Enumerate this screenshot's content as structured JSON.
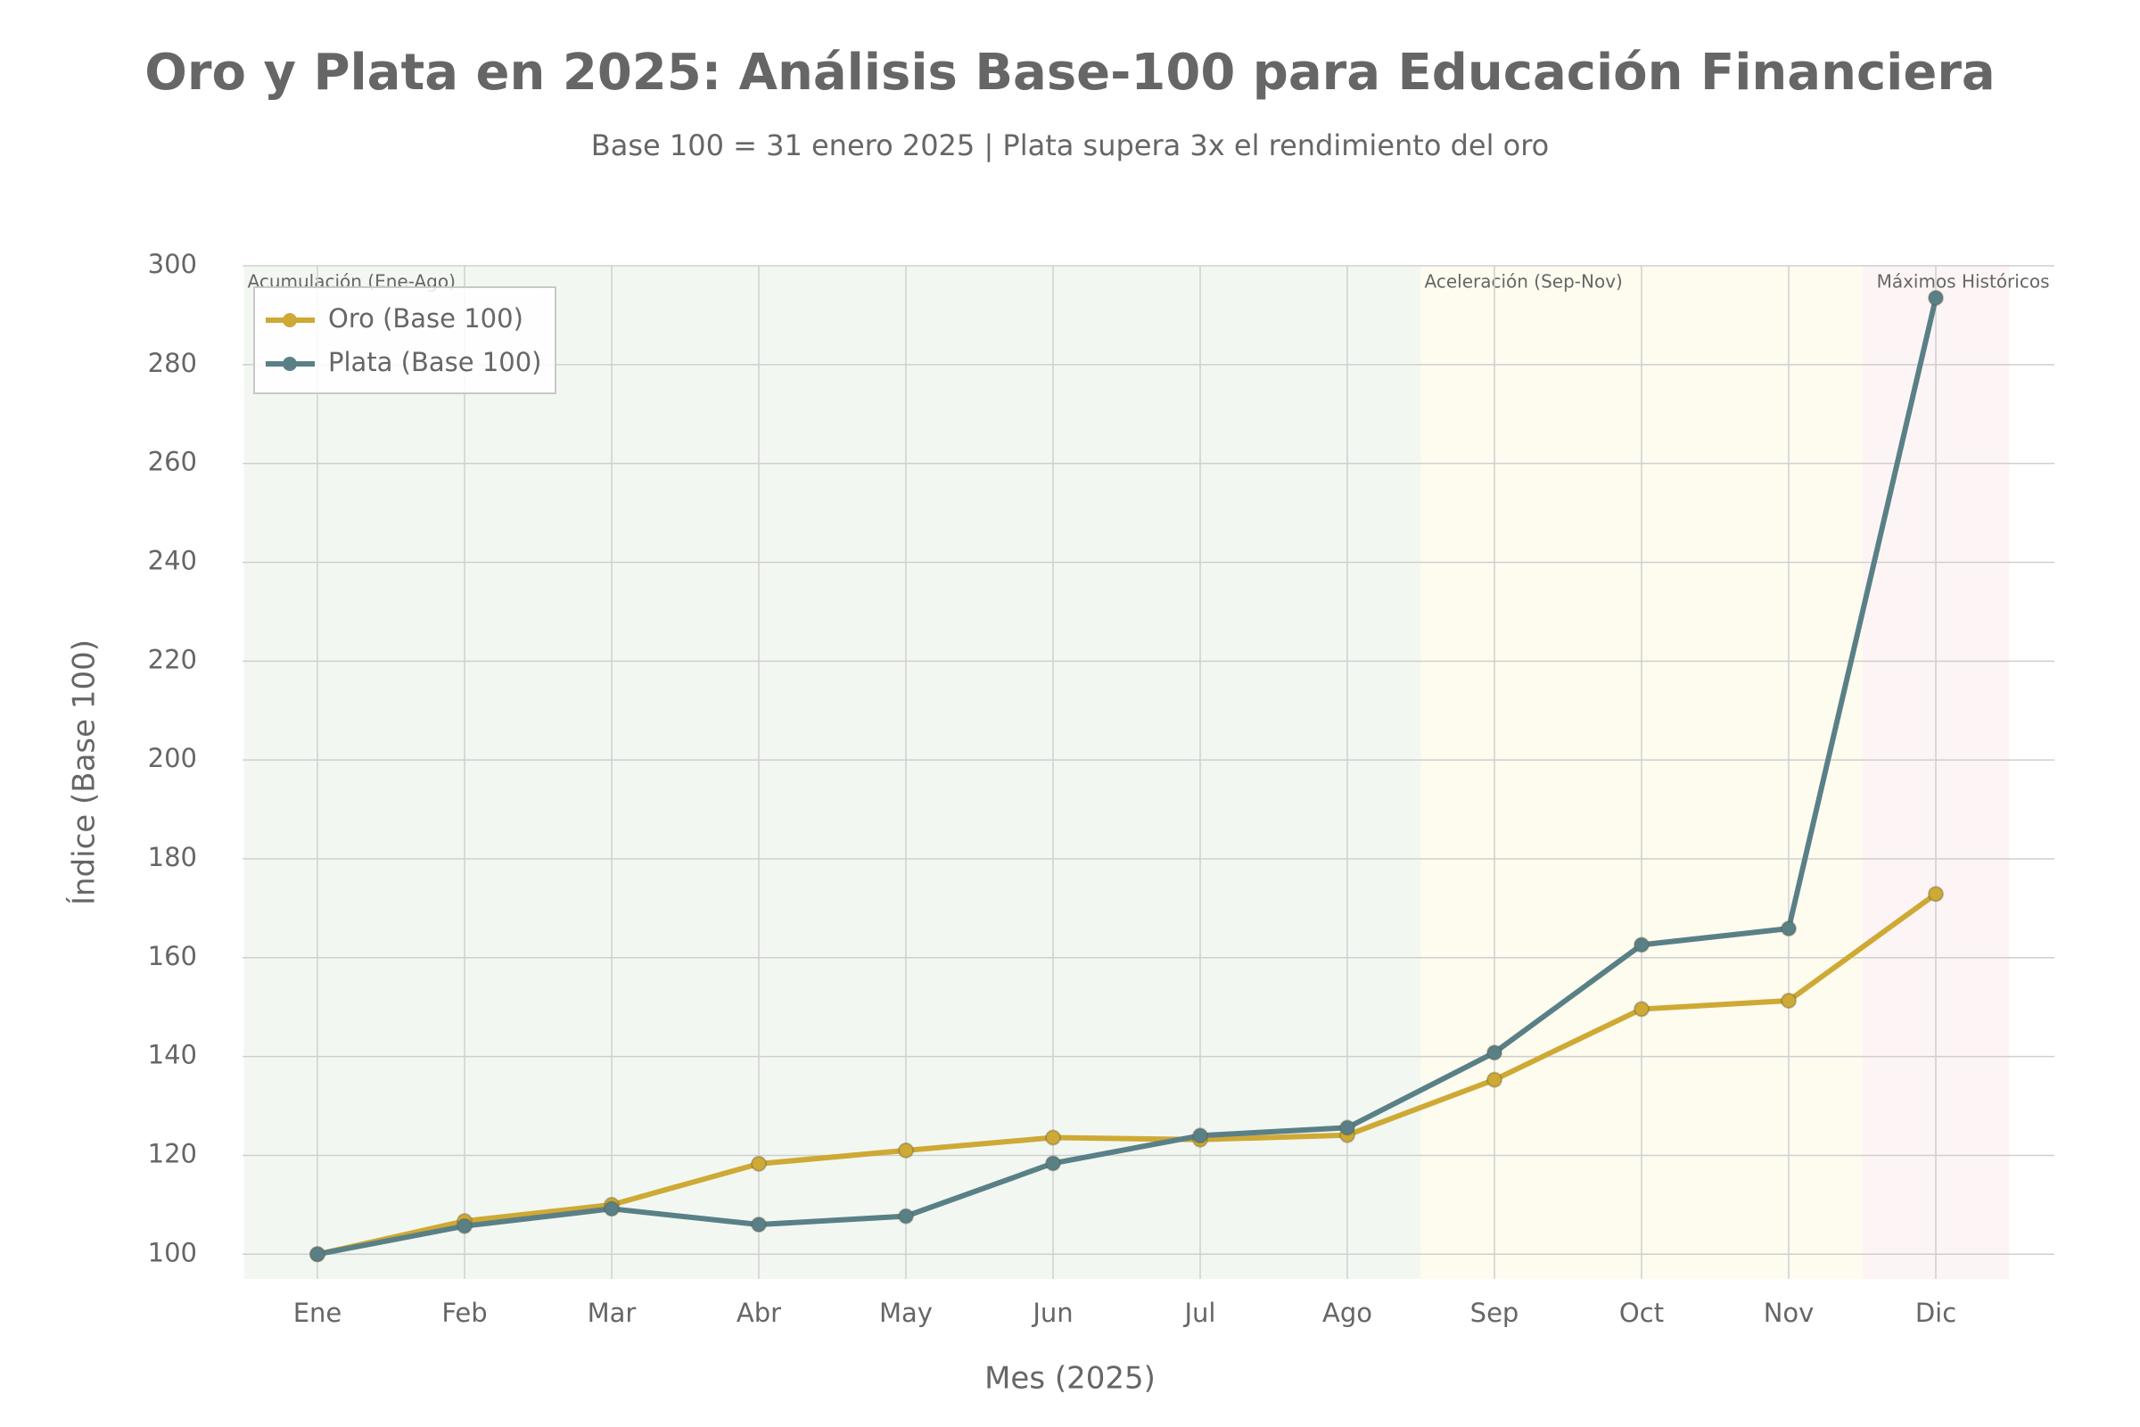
{
  "chart_data": {
    "type": "line",
    "title": "Oro y Plata en 2025: Análisis Base-100 para Educación Financiera",
    "subtitle": "Base 100 = 31 enero 2025 | Plata supera 3x el rendimiento del oro",
    "x_label": "Mes (2025)",
    "y_label": "Índice (Base 100)",
    "categories": [
      "Ene",
      "Feb",
      "Mar",
      "Abr",
      "May",
      "Jun",
      "Jul",
      "Ago",
      "Sep",
      "Oct",
      "Nov",
      "Dic"
    ],
    "series": [
      {
        "name": "Oro (Base 100)",
        "color": "#cfa935",
        "values": [
          100,
          106.7,
          110,
          118.3,
          121,
          123.6,
          123.2,
          124.1,
          135.3,
          149.6,
          151.3,
          172.9
        ]
      },
      {
        "name": "Plata (Base 100)",
        "color": "#5a8087",
        "values": [
          100,
          105.7,
          109.2,
          106,
          107.7,
          118.4,
          124,
          125.6,
          140.8,
          162.6,
          165.9,
          293.5
        ]
      }
    ],
    "regions": [
      {
        "label": "Acumulación (Ene-Ago)",
        "from": "Ene",
        "to": "Ago",
        "color": "#f2f8f1",
        "label_color": "#7f9a84"
      },
      {
        "label": "Aceleración (Sep-Nov)",
        "from": "Sep",
        "to": "Nov",
        "color": "#fefcef",
        "label_color": "#d2b04e"
      },
      {
        "label": "Máximos Históricos",
        "from": "Dic",
        "to": "Dic",
        "color": "#fdf5f5",
        "label_color": "#cf6068"
      }
    ],
    "ylim": [
      95,
      300
    ],
    "yticks": [
      100,
      120,
      140,
      160,
      180,
      200,
      220,
      240,
      260,
      280,
      300
    ],
    "grid": true,
    "legend": "upper-left"
  }
}
